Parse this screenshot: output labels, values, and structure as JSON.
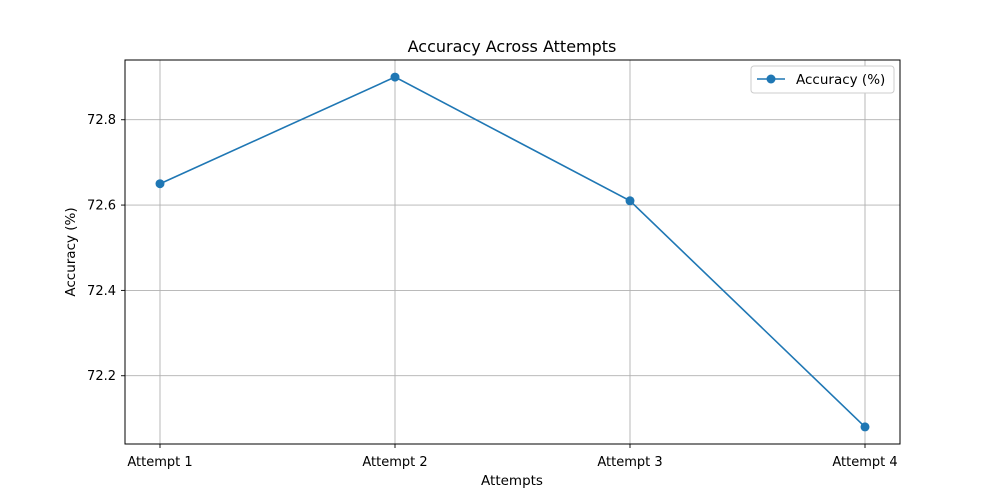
{
  "chart_data": {
    "type": "line",
    "title": "Accuracy Across Attempts",
    "xlabel": "Attempts",
    "ylabel": "Accuracy (%)",
    "categories": [
      "Attempt 1",
      "Attempt 2",
      "Attempt 3",
      "Attempt 4"
    ],
    "series": [
      {
        "name": "Accuracy (%)",
        "values": [
          72.65,
          72.9,
          72.61,
          72.08
        ],
        "color": "#1f77b4",
        "marker": "circle"
      }
    ],
    "ylim": [
      72.04,
      72.94
    ],
    "yticks": [
      "72.2",
      "72.4",
      "72.6",
      "72.8"
    ],
    "ytick_values": [
      72.2,
      72.4,
      72.6,
      72.8
    ],
    "grid": true,
    "legend_position": "top-right"
  }
}
